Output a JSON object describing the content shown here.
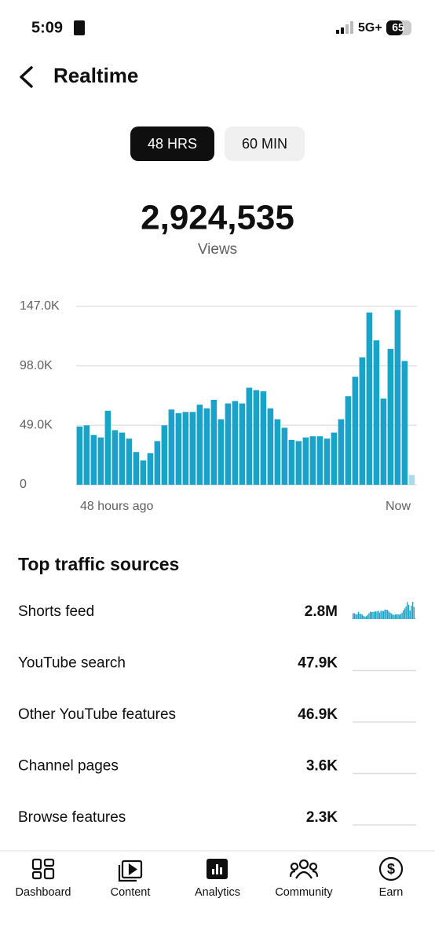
{
  "status_bar": {
    "time": "5:09",
    "network": "5G+",
    "battery": "65"
  },
  "header": {
    "title": "Realtime"
  },
  "tabs": [
    "48 HRS",
    "60 MIN"
  ],
  "total": {
    "value": "2,924,535",
    "label": "Views"
  },
  "chart_data": {
    "type": "bar",
    "x_labels": [
      "48 hours ago",
      "Now"
    ],
    "values": [
      48000,
      49000,
      41000,
      39000,
      61000,
      45000,
      43000,
      38000,
      27000,
      20000,
      26000,
      36000,
      49000,
      62000,
      59000,
      60000,
      60000,
      66000,
      63000,
      70000,
      54000,
      67000,
      69000,
      67000,
      80000,
      78000,
      77000,
      63000,
      54000,
      47000,
      37000,
      36000,
      39000,
      40000,
      40000,
      38000,
      43000,
      54000,
      73000,
      89000,
      105000,
      142000,
      119000,
      71000,
      112000,
      144000,
      102000,
      8000
    ],
    "color": "#1aa3c9",
    "current_color": "#a8dcec",
    "ylim": [
      0,
      147000
    ],
    "yticks": [
      0,
      {
        "value": 49000,
        "label": "49.0K"
      },
      {
        "value": 98000,
        "label": "98.0K"
      },
      {
        "value": 147000,
        "label": "147.0K"
      }
    ],
    "grid": true
  },
  "traffic": {
    "title": "Top traffic sources",
    "rows": [
      {
        "name": "Shorts feed",
        "value": "2.8M"
      },
      {
        "name": "YouTube search",
        "value": "47.9K"
      },
      {
        "name": "Other YouTube features",
        "value": "46.9K"
      },
      {
        "name": "Channel pages",
        "value": "3.6K"
      },
      {
        "name": "Browse features",
        "value": "2.3K"
      }
    ]
  },
  "nav": [
    "Dashboard",
    "Content",
    "Analytics",
    "Community",
    "Earn"
  ]
}
